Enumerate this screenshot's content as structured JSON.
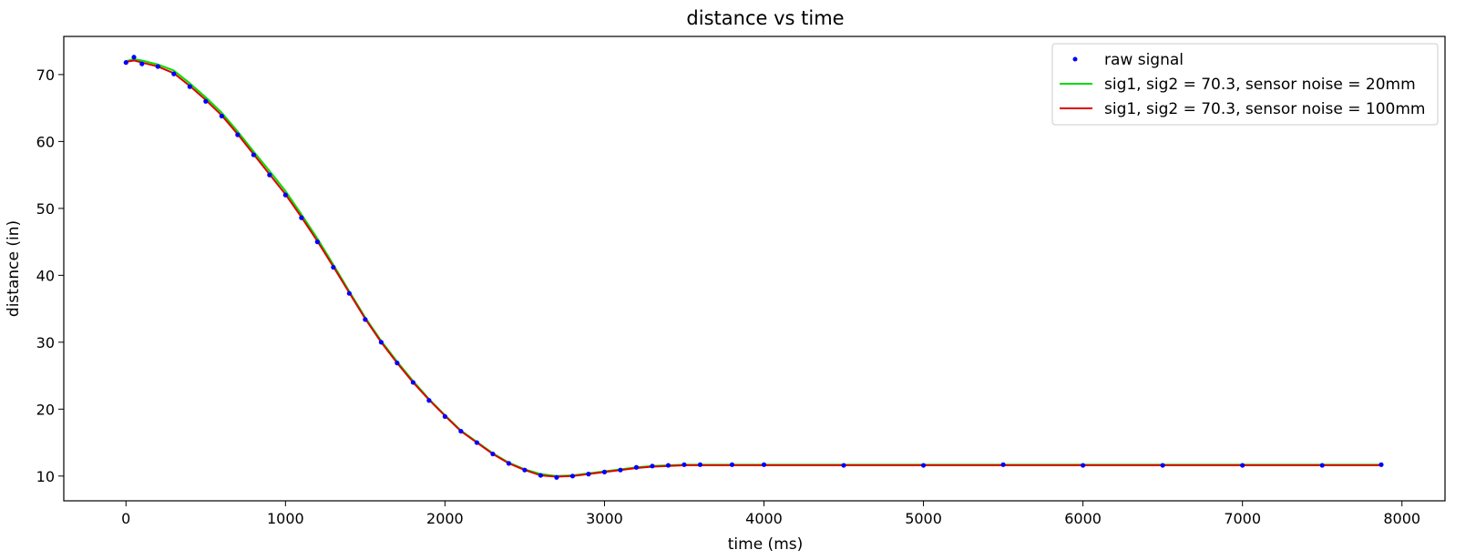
{
  "chart_data": {
    "type": "line",
    "title": "distance vs time",
    "xlabel": "time (ms)",
    "ylabel": "distance (in)",
    "xlim": [
      -390,
      8270
    ],
    "ylim": [
      6.3,
      75.7
    ],
    "x_ticks": [
      0,
      1000,
      2000,
      3000,
      4000,
      5000,
      6000,
      7000,
      8000
    ],
    "y_ticks": [
      10,
      20,
      30,
      40,
      50,
      60,
      70
    ],
    "grid": false,
    "legend_position": "top-right",
    "colors": {
      "raw": "#0000ff",
      "green": "#00dd00",
      "red": "#e00000"
    },
    "series": [
      {
        "name": "raw signal",
        "style": "points",
        "color": "#0000ff",
        "points": [
          [
            0,
            71.8
          ],
          [
            50,
            72.6
          ],
          [
            100,
            71.6
          ],
          [
            200,
            71.2
          ],
          [
            300,
            70.1
          ],
          [
            400,
            68.2
          ],
          [
            500,
            66.0
          ],
          [
            600,
            63.8
          ],
          [
            700,
            61.0
          ],
          [
            800,
            58.0
          ],
          [
            900,
            55.0
          ],
          [
            1000,
            52.0
          ],
          [
            1100,
            48.6
          ],
          [
            1200,
            45.0
          ],
          [
            1300,
            41.2
          ],
          [
            1400,
            37.3
          ],
          [
            1500,
            33.4
          ],
          [
            1600,
            30.0
          ],
          [
            1700,
            26.9
          ],
          [
            1800,
            24.0
          ],
          [
            1900,
            21.3
          ],
          [
            2000,
            18.9
          ],
          [
            2100,
            16.7
          ],
          [
            2200,
            15.0
          ],
          [
            2300,
            13.3
          ],
          [
            2400,
            11.9
          ],
          [
            2500,
            10.9
          ],
          [
            2600,
            10.1
          ],
          [
            2700,
            9.8
          ],
          [
            2800,
            10.0
          ],
          [
            2900,
            10.3
          ],
          [
            3000,
            10.6
          ],
          [
            3100,
            10.9
          ],
          [
            3200,
            11.3
          ],
          [
            3300,
            11.5
          ],
          [
            3400,
            11.6
          ],
          [
            3500,
            11.7
          ],
          [
            3600,
            11.7
          ],
          [
            3800,
            11.7
          ],
          [
            4000,
            11.7
          ],
          [
            4500,
            11.6
          ],
          [
            5000,
            11.6
          ],
          [
            5500,
            11.7
          ],
          [
            6000,
            11.6
          ],
          [
            6500,
            11.6
          ],
          [
            7000,
            11.6
          ],
          [
            7500,
            11.6
          ],
          [
            7870,
            11.7
          ]
        ]
      },
      {
        "name": "sig1, sig2 = 70.3, sensor noise = 20mm",
        "style": "line",
        "color": "#00dd00",
        "points": [
          [
            0,
            72.0
          ],
          [
            50,
            72.3
          ],
          [
            100,
            72.1
          ],
          [
            200,
            71.5
          ],
          [
            300,
            70.6
          ],
          [
            400,
            68.7
          ],
          [
            500,
            66.6
          ],
          [
            600,
            64.3
          ],
          [
            700,
            61.5
          ],
          [
            800,
            58.5
          ],
          [
            900,
            55.6
          ],
          [
            1000,
            52.6
          ],
          [
            1100,
            49.1
          ],
          [
            1200,
            45.5
          ],
          [
            1300,
            41.6
          ],
          [
            1400,
            37.6
          ],
          [
            1500,
            33.7
          ],
          [
            1600,
            30.2
          ],
          [
            1700,
            27.1
          ],
          [
            1800,
            24.2
          ],
          [
            1900,
            21.5
          ],
          [
            2000,
            19.1
          ],
          [
            2100,
            16.8
          ],
          [
            2200,
            15.1
          ],
          [
            2300,
            13.4
          ],
          [
            2400,
            12.0
          ],
          [
            2500,
            11.0
          ],
          [
            2600,
            10.3
          ],
          [
            2700,
            10.0
          ],
          [
            2800,
            10.1
          ],
          [
            2900,
            10.4
          ],
          [
            3000,
            10.7
          ],
          [
            3100,
            11.0
          ],
          [
            3200,
            11.3
          ],
          [
            3300,
            11.5
          ],
          [
            3400,
            11.6
          ],
          [
            3500,
            11.7
          ],
          [
            3600,
            11.7
          ],
          [
            3800,
            11.7
          ],
          [
            4000,
            11.7
          ],
          [
            4500,
            11.7
          ],
          [
            5000,
            11.7
          ],
          [
            5500,
            11.7
          ],
          [
            6000,
            11.7
          ],
          [
            6500,
            11.7
          ],
          [
            7000,
            11.7
          ],
          [
            7500,
            11.7
          ],
          [
            7870,
            11.7
          ]
        ]
      },
      {
        "name": "sig1, sig2 = 70.3, sensor noise = 100mm",
        "style": "line",
        "color": "#e00000",
        "points": [
          [
            0,
            71.9
          ],
          [
            50,
            72.1
          ],
          [
            100,
            71.8
          ],
          [
            200,
            71.2
          ],
          [
            300,
            70.2
          ],
          [
            400,
            68.3
          ],
          [
            500,
            66.2
          ],
          [
            600,
            63.9
          ],
          [
            700,
            61.1
          ],
          [
            800,
            58.1
          ],
          [
            900,
            55.1
          ],
          [
            1000,
            52.1
          ],
          [
            1100,
            48.7
          ],
          [
            1200,
            45.1
          ],
          [
            1300,
            41.3
          ],
          [
            1400,
            37.4
          ],
          [
            1500,
            33.5
          ],
          [
            1600,
            30.0
          ],
          [
            1700,
            26.9
          ],
          [
            1800,
            24.0
          ],
          [
            1900,
            21.4
          ],
          [
            2000,
            19.0
          ],
          [
            2100,
            16.7
          ],
          [
            2200,
            15.0
          ],
          [
            2300,
            13.3
          ],
          [
            2400,
            11.9
          ],
          [
            2500,
            10.9
          ],
          [
            2600,
            10.1
          ],
          [
            2700,
            9.9
          ],
          [
            2800,
            10.0
          ],
          [
            2900,
            10.3
          ],
          [
            3000,
            10.6
          ],
          [
            3100,
            10.9
          ],
          [
            3200,
            11.2
          ],
          [
            3300,
            11.4
          ],
          [
            3400,
            11.5
          ],
          [
            3500,
            11.6
          ],
          [
            3600,
            11.6
          ],
          [
            3800,
            11.6
          ],
          [
            4000,
            11.6
          ],
          [
            4500,
            11.6
          ],
          [
            5000,
            11.6
          ],
          [
            5500,
            11.6
          ],
          [
            6000,
            11.6
          ],
          [
            6500,
            11.6
          ],
          [
            7000,
            11.6
          ],
          [
            7500,
            11.6
          ],
          [
            7870,
            11.6
          ]
        ]
      }
    ]
  }
}
